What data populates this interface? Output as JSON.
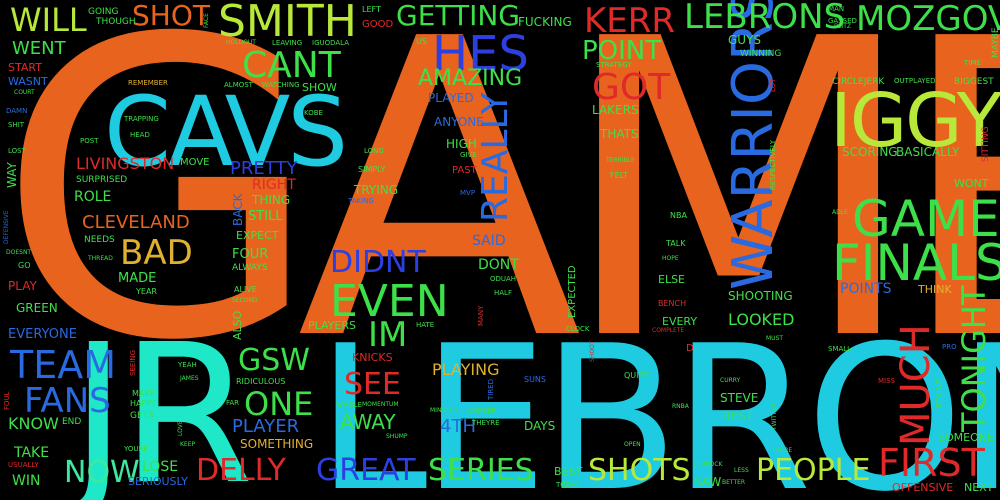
{
  "colors": {
    "background": "#000000",
    "orange": "#e8641e",
    "cyan": "#1ecbe1",
    "green": "#3ee04a",
    "lime": "#b8e83a",
    "blue": "#2d3fe0",
    "red": "#e02a2a",
    "mint": "#3ee8a0",
    "teal": "#1ea0a8",
    "gold": "#e0b030",
    "navy": "#3050c8"
  },
  "words": [
    {
      "text": "GAME",
      "color": "#e8641e"
    },
    {
      "text": "LEBRON",
      "color": "#1ecbe1"
    },
    {
      "text": "JR",
      "color": "#1ee8c8"
    },
    {
      "text": "CAVS",
      "color": "#1ecbe1"
    },
    {
      "text": "IGGY",
      "color": "#b8e83a"
    },
    {
      "text": "WARRIORS",
      "color": "#2a6ae0"
    },
    {
      "text": "GAMES",
      "color": "#3ee04a"
    },
    {
      "text": "FINALS",
      "color": "#3ee04a"
    },
    {
      "text": "SMITH",
      "color": "#b8e83a"
    },
    {
      "text": "HES",
      "color": "#2d3fe0"
    },
    {
      "text": "KERR",
      "color": "#e02a2a"
    },
    {
      "text": "LEBRONS",
      "color": "#3ee04a"
    },
    {
      "text": "MOZGOV",
      "color": "#3ee04a"
    },
    {
      "text": "SHOT",
      "color": "#e8641e"
    },
    {
      "text": "WILL",
      "color": "#b8e83a"
    },
    {
      "text": "GETTING",
      "color": "#3ee04a"
    },
    {
      "text": "CANT",
      "color": "#3ee04a"
    },
    {
      "text": "POINT",
      "color": "#3ee04a"
    },
    {
      "text": "GOT",
      "color": "#e02a2a"
    },
    {
      "text": "AMAZING",
      "color": "#3ee04a"
    },
    {
      "text": "REALLY",
      "color": "#2a6ae0"
    },
    {
      "text": "EVEN",
      "color": "#3ee04a"
    },
    {
      "text": "DIDNT",
      "color": "#2d3fe0"
    },
    {
      "text": "IM",
      "color": "#3ee04a"
    },
    {
      "text": "BAD",
      "color": "#e0b030"
    },
    {
      "text": "TEAM",
      "color": "#2a6ae0"
    },
    {
      "text": "FANS",
      "color": "#2a6ae0"
    },
    {
      "text": "GSW",
      "color": "#3ee04a"
    },
    {
      "text": "ONE",
      "color": "#3ee04a"
    },
    {
      "text": "SEE",
      "color": "#e02a2a"
    },
    {
      "text": "MUCH",
      "color": "#e02a2a"
    },
    {
      "text": "TONIGHT",
      "color": "#3ee04a"
    },
    {
      "text": "FIRST",
      "color": "#e02a2a"
    },
    {
      "text": "PEOPLE",
      "color": "#b8e83a"
    },
    {
      "text": "SHOTS",
      "color": "#b8e83a"
    },
    {
      "text": "SERIES",
      "color": "#3ee04a"
    },
    {
      "text": "GREAT",
      "color": "#2d3fe0"
    },
    {
      "text": "DELLY",
      "color": "#e02a2a"
    },
    {
      "text": "NOW",
      "color": "#3ee8a0"
    },
    {
      "text": "CLEVELAND",
      "color": "#e8641e"
    },
    {
      "text": "LIVINGSTON",
      "color": "#e02a2a"
    },
    {
      "text": "PRETTY",
      "color": "#2d3fe0"
    },
    {
      "text": "RIGHT",
      "color": "#e02a2a"
    },
    {
      "text": "AWAY",
      "color": "#3ee04a"
    },
    {
      "text": "PLAYER",
      "color": "#2a6ae0"
    },
    {
      "text": "PLAYING",
      "color": "#e0b030"
    },
    {
      "text": "4TH",
      "color": "#2a6ae0"
    },
    {
      "text": "LOOKED",
      "color": "#3ee04a"
    },
    {
      "text": "POINTS",
      "color": "#2a6ae0"
    },
    {
      "text": "SAID",
      "color": "#2a6ae0"
    },
    {
      "text": "DONT",
      "color": "#3ee04a"
    },
    {
      "text": "KNOW",
      "color": "#3ee04a"
    },
    {
      "text": "TAKE",
      "color": "#3ee04a"
    },
    {
      "text": "WIN",
      "color": "#3ee04a"
    },
    {
      "text": "LOSE",
      "color": "#3ee04a"
    },
    {
      "text": "MADE",
      "color": "#3ee04a"
    },
    {
      "text": "ROLE",
      "color": "#3ee04a"
    },
    {
      "text": "FOUR",
      "color": "#3ee04a"
    },
    {
      "text": "STILL",
      "color": "#3ee04a"
    },
    {
      "text": "THING",
      "color": "#3ee04a"
    },
    {
      "text": "TRYING",
      "color": "#3ee04a"
    },
    {
      "text": "WENT",
      "color": "#3ee04a"
    },
    {
      "text": "EVERYONE",
      "color": "#2a6ae0"
    },
    {
      "text": "SHOOTING",
      "color": "#3ee04a"
    },
    {
      "text": "DAYS",
      "color": "#3ee04a"
    },
    {
      "text": "STEVE",
      "color": "#3ee04a"
    },
    {
      "text": "REST",
      "color": "#3ee04a"
    },
    {
      "text": "SOMEONE",
      "color": "#3ee04a"
    },
    {
      "text": "SCORING",
      "color": "#3ee04a"
    },
    {
      "text": "BASICALLY",
      "color": "#3ee04a"
    },
    {
      "text": "PLAYED",
      "color": "#2a6ae0"
    },
    {
      "text": "ANYONE",
      "color": "#2a6ae0"
    },
    {
      "text": "HIGH",
      "color": "#3ee04a"
    },
    {
      "text": "THATS",
      "color": "#3ee04a"
    },
    {
      "text": "WAIT",
      "color": "#e8641e"
    },
    {
      "text": "LAKERS",
      "color": "#3ee04a"
    },
    {
      "text": "GUYS",
      "color": "#3ee04a"
    },
    {
      "text": "SOMETHING",
      "color": "#e0b030"
    },
    {
      "text": "EXPECT",
      "color": "#3ee04a"
    },
    {
      "text": "NEEDS",
      "color": "#3ee04a"
    },
    {
      "text": "PLAY",
      "color": "#e02a2a"
    },
    {
      "text": "GREEN",
      "color": "#3ee04a"
    },
    {
      "text": "START",
      "color": "#e02a2a"
    },
    {
      "text": "WASNT",
      "color": "#2a6ae0"
    },
    {
      "text": "WAY",
      "color": "#3ee04a"
    },
    {
      "text": "SHOW",
      "color": "#3ee04a"
    },
    {
      "text": "ELSE",
      "color": "#3ee04a"
    },
    {
      "text": "EVERY",
      "color": "#3ee04a"
    },
    {
      "text": "THINK",
      "color": "#e0b030"
    },
    {
      "text": "KNICKS",
      "color": "#e02a2a"
    },
    {
      "text": "PLAYERS",
      "color": "#3ee04a"
    },
    {
      "text": "SERIOUSLY",
      "color": "#2a6ae0"
    },
    {
      "text": "CIRCLEJERK",
      "color": "#3ee04a"
    },
    {
      "text": "BIGGEST",
      "color": "#3ee04a"
    },
    {
      "text": "WONT",
      "color": "#3ee04a"
    },
    {
      "text": "OFFENSIVE",
      "color": "#e02a2a"
    },
    {
      "text": "NEXT",
      "color": "#3ee04a"
    },
    {
      "text": "BACK",
      "color": "#2a6ae0"
    },
    {
      "text": "ALSO",
      "color": "#3ee04a"
    },
    {
      "text": "ALWAYS",
      "color": "#3ee04a"
    },
    {
      "text": "EXPECTED",
      "color": "#3ee04a"
    },
    {
      "text": "BEST",
      "color": "#3ee04a"
    },
    {
      "text": "SAW",
      "color": "#3ee04a"
    },
    {
      "text": "FUCKING",
      "color": "#3ee04a"
    },
    {
      "text": "GOING",
      "color": "#3ee04a"
    },
    {
      "text": "THOUGH",
      "color": "#3ee04a"
    },
    {
      "text": "SURPRISED",
      "color": "#3ee04a"
    },
    {
      "text": "MOVE",
      "color": "#3ee04a"
    },
    {
      "text": "REMEMBER",
      "color": "#e0b030"
    },
    {
      "text": "TRAPPING",
      "color": "#3ee04a"
    },
    {
      "text": "HEAD",
      "color": "#3ee04a"
    },
    {
      "text": "POST",
      "color": "#3ee04a"
    },
    {
      "text": "ALMOST",
      "color": "#3ee04a"
    },
    {
      "text": "WATCHING",
      "color": "#3ee04a"
    },
    {
      "text": "KOBE",
      "color": "#3ee04a"
    },
    {
      "text": "LEAVING",
      "color": "#3ee04a"
    },
    {
      "text": "IGUODALA",
      "color": "#3ee04a"
    },
    {
      "text": "LEFT",
      "color": "#3ee04a"
    },
    {
      "text": "GOOD",
      "color": "#e02a2a"
    },
    {
      "text": "US",
      "color": "#3ee04a"
    },
    {
      "text": "STRATEGY",
      "color": "#3ee04a"
    },
    {
      "text": "WINNING",
      "color": "#3ee04a"
    },
    {
      "text": "TIME",
      "color": "#3ee04a"
    },
    {
      "text": "MAYBE",
      "color": "#3ee04a"
    },
    {
      "text": "IMAN",
      "color": "#3ee04a"
    },
    {
      "text": "GASSED",
      "color": "#3ee04a"
    },
    {
      "text": "OUTPLAYED",
      "color": "#3ee04a"
    },
    {
      "text": "SITTING",
      "color": "#e02a2a"
    },
    {
      "text": "LONG",
      "color": "#3ee04a"
    },
    {
      "text": "SIMPLY",
      "color": "#3ee04a"
    },
    {
      "text": "TAKING",
      "color": "#2a6ae0"
    },
    {
      "text": "MVP",
      "color": "#2a6ae0"
    },
    {
      "text": "PAST",
      "color": "#e02a2a"
    },
    {
      "text": "GIVE",
      "color": "#3ee04a"
    },
    {
      "text": "FELT",
      "color": "#3ee04a"
    },
    {
      "text": "TERRIBLE",
      "color": "#3ee04a"
    },
    {
      "text": "NBA",
      "color": "#3ee04a"
    },
    {
      "text": "TALK",
      "color": "#3ee04a"
    },
    {
      "text": "HOPE",
      "color": "#3ee04a"
    },
    {
      "text": "RESPECTIVELY",
      "color": "#3ee04a"
    },
    {
      "text": "LOT",
      "color": "#e02a2a"
    },
    {
      "text": "ODUAH",
      "color": "#3ee04a"
    },
    {
      "text": "HALF",
      "color": "#3ee04a"
    },
    {
      "text": "MANY",
      "color": "#e02a2a"
    },
    {
      "text": "BENCH",
      "color": "#e02a2a"
    },
    {
      "text": "COMPLETE",
      "color": "#e02a2a"
    },
    {
      "text": "CLOCK",
      "color": "#3ee04a"
    },
    {
      "text": "MUST",
      "color": "#3ee04a"
    },
    {
      "text": "SMALL",
      "color": "#3ee04a"
    },
    {
      "text": "PRO",
      "color": "#2a6ae0"
    },
    {
      "text": "HATE",
      "color": "#3ee04a"
    },
    {
      "text": "SECOND",
      "color": "#3ee04a"
    },
    {
      "text": "ALIVE",
      "color": "#3ee04a"
    },
    {
      "text": "YEAR",
      "color": "#3ee04a"
    },
    {
      "text": "THREAD",
      "color": "#3ee04a"
    },
    {
      "text": "DOESNT",
      "color": "#3ee04a"
    },
    {
      "text": "GO",
      "color": "#3ee04a"
    },
    {
      "text": "DEFENSIVE",
      "color": "#2a6ae0"
    },
    {
      "text": "SEEING",
      "color": "#e02a2a"
    },
    {
      "text": "MAKE",
      "color": "#3ee04a"
    },
    {
      "text": "HAPPY",
      "color": "#3ee04a"
    },
    {
      "text": "GETS",
      "color": "#3ee04a"
    },
    {
      "text": "YEAH",
      "color": "#3ee04a"
    },
    {
      "text": "JAMES",
      "color": "#3ee04a"
    },
    {
      "text": "RIDICULOUS",
      "color": "#3ee04a"
    },
    {
      "text": "FAR",
      "color": "#3ee04a"
    },
    {
      "text": "WHOLE",
      "color": "#3ee04a"
    },
    {
      "text": "MOMENTUM",
      "color": "#3ee04a"
    },
    {
      "text": "SHUMP",
      "color": "#3ee04a"
    },
    {
      "text": "MINUTES",
      "color": "#3ee04a"
    },
    {
      "text": "CAREER",
      "color": "#3ee04a"
    },
    {
      "text": "THEYRE",
      "color": "#3ee04a"
    },
    {
      "text": "TIRED",
      "color": "#2a6ae0"
    },
    {
      "text": "SUNS",
      "color": "#2a6ae0"
    },
    {
      "text": "QUIET",
      "color": "#3ee04a"
    },
    {
      "text": "RNBA",
      "color": "#3ee04a"
    },
    {
      "text": "OPEN",
      "color": "#3ee04a"
    },
    {
      "text": "CURRY",
      "color": "#3ee04a"
    },
    {
      "text": "TWITTER",
      "color": "#3ee04a"
    },
    {
      "text": "SURE",
      "color": "#3ee04a"
    },
    {
      "text": "MISS",
      "color": "#e02a2a"
    },
    {
      "text": "ROUND",
      "color": "#3ee04a"
    },
    {
      "text": "END",
      "color": "#3ee04a"
    },
    {
      "text": "FOUL",
      "color": "#e02a2a"
    },
    {
      "text": "LOVE",
      "color": "#3ee04a"
    },
    {
      "text": "KEEP",
      "color": "#3ee04a"
    },
    {
      "text": "YOURE",
      "color": "#3ee04a"
    },
    {
      "text": "USUALLY",
      "color": "#e02a2a"
    },
    {
      "text": "TODAY",
      "color": "#3ee04a"
    },
    {
      "text": "GIMBOCK",
      "color": "#3ee04a"
    },
    {
      "text": "LESS",
      "color": "#3ee04a"
    },
    {
      "text": "BETTER",
      "color": "#3ee04a"
    },
    {
      "text": "SHOOT",
      "color": "#e02a2a"
    },
    {
      "text": "D",
      "color": "#e02a2a"
    },
    {
      "text": "DAMN",
      "color": "#2a6ae0"
    },
    {
      "text": "SHIT",
      "color": "#3ee04a"
    },
    {
      "text": "LOST",
      "color": "#3ee04a"
    },
    {
      "text": "COURT",
      "color": "#3ee04a"
    },
    {
      "text": "FACE",
      "color": "#3ee04a"
    },
    {
      "text": "HOLDOUT",
      "color": "#3ee04a"
    },
    {
      "text": "ADLE",
      "color": "#3ee04a"
    },
    {
      "text": "BLITZ",
      "color": "#3ee04a"
    }
  ]
}
